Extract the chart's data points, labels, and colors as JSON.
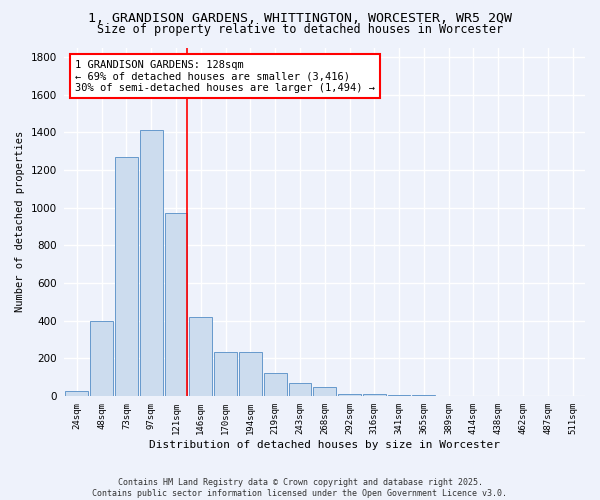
{
  "title1": "1, GRANDISON GARDENS, WHITTINGTON, WORCESTER, WR5 2QW",
  "title2": "Size of property relative to detached houses in Worcester",
  "xlabel": "Distribution of detached houses by size in Worcester",
  "ylabel": "Number of detached properties",
  "categories": [
    "24sqm",
    "48sqm",
    "73sqm",
    "97sqm",
    "121sqm",
    "146sqm",
    "170sqm",
    "194sqm",
    "219sqm",
    "243sqm",
    "268sqm",
    "292sqm",
    "316sqm",
    "341sqm",
    "365sqm",
    "389sqm",
    "414sqm",
    "438sqm",
    "462sqm",
    "487sqm",
    "511sqm"
  ],
  "values": [
    25,
    400,
    1270,
    1410,
    970,
    420,
    235,
    235,
    120,
    70,
    45,
    12,
    8,
    4,
    4,
    2,
    2,
    2,
    2,
    2,
    2
  ],
  "bar_color": "#ccdcee",
  "bar_edge_color": "#6699cc",
  "background_color": "#eef2fb",
  "grid_color": "#ffffff",
  "vline_x_index": 4,
  "vline_color": "red",
  "annotation_text": "1 GRANDISON GARDENS: 128sqm\n← 69% of detached houses are smaller (3,416)\n30% of semi-detached houses are larger (1,494) →",
  "annotation_box_facecolor": "white",
  "annotation_box_edgecolor": "red",
  "ylim": [
    0,
    1850
  ],
  "yticks": [
    0,
    200,
    400,
    600,
    800,
    1000,
    1200,
    1400,
    1600,
    1800
  ],
  "footnote": "Contains HM Land Registry data © Crown copyright and database right 2025.\nContains public sector information licensed under the Open Government Licence v3.0."
}
